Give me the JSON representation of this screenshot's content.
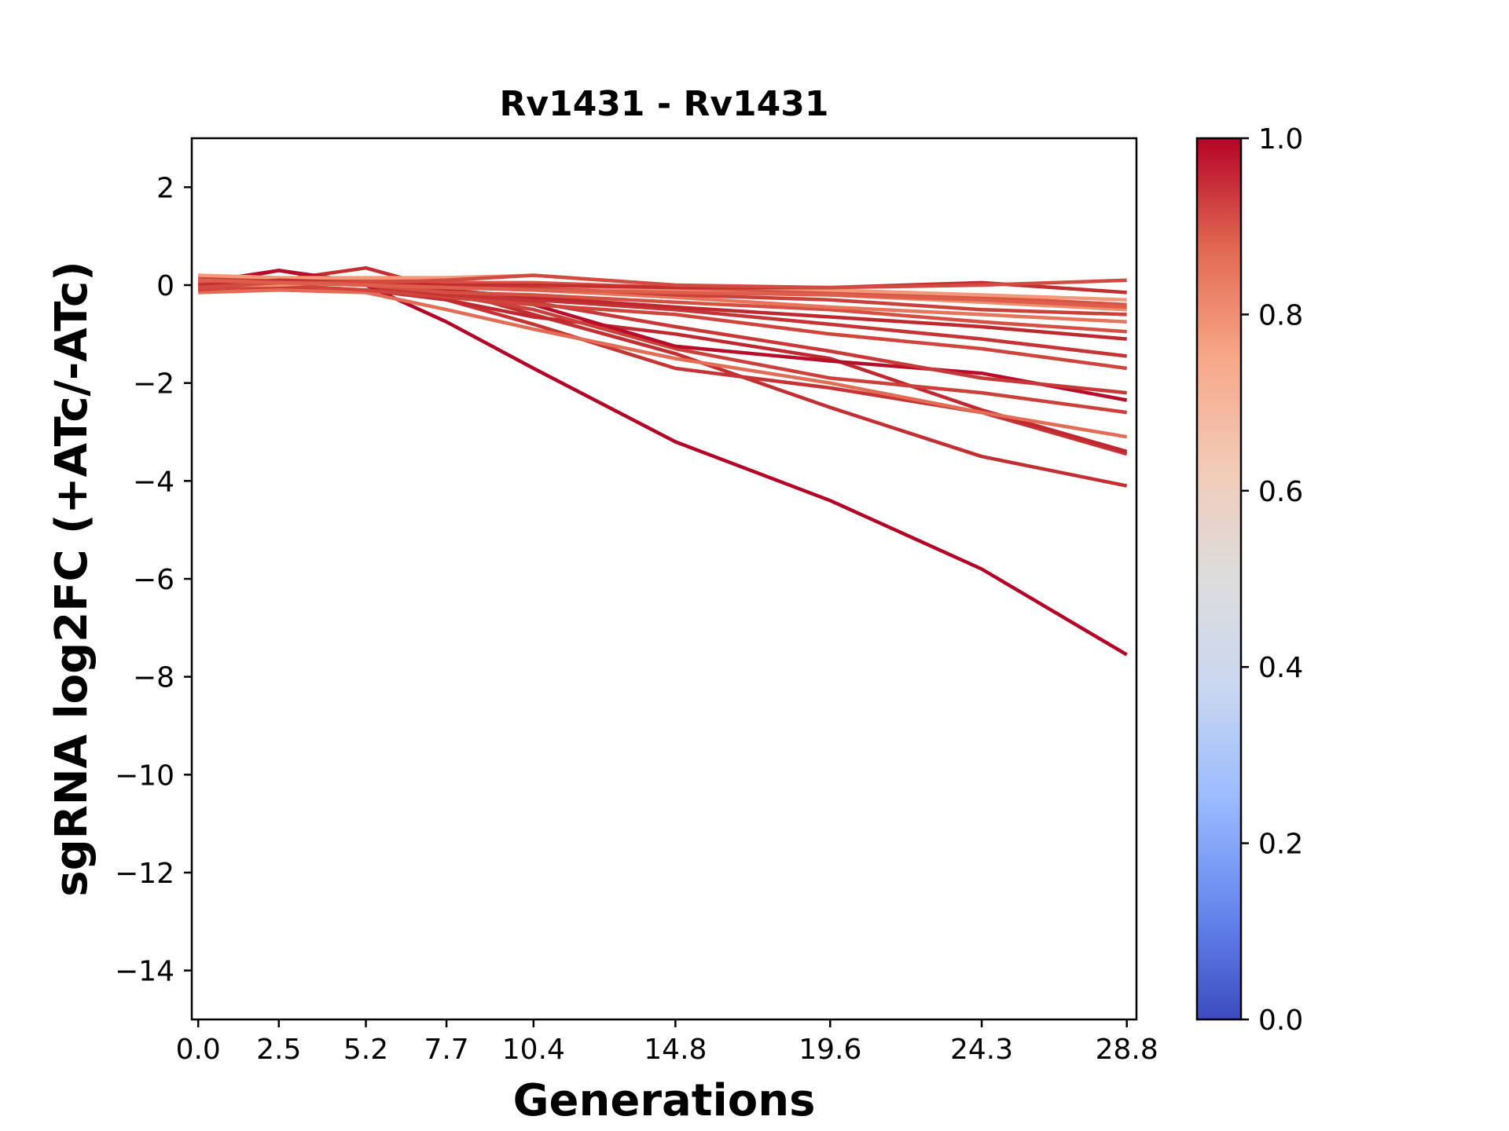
{
  "chart_data": {
    "type": "line",
    "title": "Rv1431 - Rv1431",
    "xlabel": "Generations",
    "ylabel": "sgRNA log2FC (+ATc/-ATc)",
    "x": [
      0.0,
      2.5,
      5.2,
      7.7,
      10.4,
      14.8,
      19.6,
      24.3,
      28.8
    ],
    "x_tick_labels": [
      "0.0",
      "2.5",
      "5.2",
      "7.7",
      "10.4",
      "14.8",
      "19.6",
      "24.3",
      "28.8"
    ],
    "xlim": [
      -0.2,
      29.1
    ],
    "ylim": [
      -15,
      3
    ],
    "y_ticks": [
      2,
      0,
      -2,
      -4,
      -6,
      -8,
      -10,
      -12,
      -14
    ],
    "y_tick_labels": [
      "2",
      "0",
      "−2",
      "−4",
      "−6",
      "−8",
      "−10",
      "−12",
      "−14"
    ],
    "grid": false,
    "colorbar": {
      "colormap": "coolwarm",
      "range": [
        0.0,
        1.0
      ],
      "ticks": [
        0.0,
        0.2,
        0.4,
        0.6,
        0.8,
        1.0
      ],
      "tick_labels": [
        "0.0",
        "0.2",
        "0.4",
        "0.6",
        "0.8",
        "1.0"
      ],
      "stops": [
        "#3b4cc0",
        "#6788ee",
        "#9abbff",
        "#c9d7f0",
        "#dddddd",
        "#f2cbb7",
        "#f7a889",
        "#e26952",
        "#b40426"
      ]
    },
    "series": [
      {
        "values": [
          0.0,
          0.3,
          0.0,
          -0.75,
          -1.7,
          -3.2,
          -4.4,
          -5.8,
          -7.55
        ],
        "color": "#b40426"
      },
      {
        "values": [
          0.0,
          0.1,
          0.35,
          -0.1,
          -0.6,
          -1.4,
          -2.5,
          -3.5,
          -4.1
        ],
        "color": "#c32e31"
      },
      {
        "values": [
          -0.1,
          -0.05,
          -0.1,
          -0.3,
          -0.8,
          -1.7,
          -2.1,
          -2.6,
          -3.45
        ],
        "color": "#c53334"
      },
      {
        "values": [
          0.0,
          0.1,
          0.0,
          -0.3,
          -0.65,
          -1.0,
          -1.5,
          -2.55,
          -3.4
        ],
        "color": "#c0282f"
      },
      {
        "values": [
          -0.15,
          -0.1,
          -0.15,
          -0.5,
          -0.9,
          -1.5,
          -2.0,
          -2.6,
          -3.1
        ],
        "color": "#e36c55"
      },
      {
        "values": [
          0.0,
          0.1,
          0.1,
          -0.2,
          -0.5,
          -1.3,
          -1.9,
          -2.2,
          -2.6
        ],
        "color": "#cc403a"
      },
      {
        "values": [
          0.05,
          0.3,
          0.05,
          -0.2,
          -0.4,
          -1.25,
          -1.55,
          -1.8,
          -2.35
        ],
        "color": "#b70d28"
      },
      {
        "values": [
          -0.05,
          0.15,
          0.05,
          -0.15,
          -0.35,
          -0.85,
          -1.35,
          -1.9,
          -2.2
        ],
        "color": "#c83837"
      },
      {
        "values": [
          -0.1,
          0.0,
          -0.1,
          -0.25,
          -0.4,
          -0.6,
          -1.0,
          -1.3,
          -1.7
        ],
        "color": "#cf453c"
      },
      {
        "values": [
          0.0,
          0.1,
          0.0,
          -0.2,
          -0.3,
          -0.5,
          -0.8,
          -1.1,
          -1.45
        ],
        "color": "#c53334"
      },
      {
        "values": [
          0.1,
          0.15,
          0.05,
          -0.1,
          -0.25,
          -0.45,
          -0.65,
          -0.85,
          -1.1
        ],
        "color": "#c0282f"
      },
      {
        "values": [
          -0.05,
          0.05,
          0.0,
          -0.15,
          -0.2,
          -0.35,
          -0.5,
          -0.75,
          -0.95
        ],
        "color": "#d55042"
      },
      {
        "values": [
          0.1,
          0.1,
          0.05,
          -0.05,
          -0.1,
          -0.25,
          -0.45,
          -0.6,
          -0.75
        ],
        "color": "#e7745b"
      },
      {
        "values": [
          0.15,
          0.1,
          0.15,
          0.0,
          -0.05,
          -0.2,
          -0.3,
          -0.5,
          -0.6
        ],
        "color": "#cc403a"
      },
      {
        "values": [
          0.0,
          0.0,
          0.1,
          0.0,
          0.0,
          -0.1,
          -0.2,
          -0.35,
          -0.5
        ],
        "color": "#f08b6e"
      },
      {
        "values": [
          0.05,
          0.05,
          0.1,
          0.05,
          0.05,
          -0.05,
          -0.15,
          -0.25,
          -0.4
        ],
        "color": "#d75445"
      },
      {
        "values": [
          0.2,
          0.15,
          0.15,
          0.15,
          0.2,
          0.0,
          -0.1,
          -0.2,
          -0.3
        ],
        "color": "#f4987a"
      },
      {
        "values": [
          0.0,
          0.1,
          0.05,
          0.0,
          0.0,
          -0.05,
          -0.05,
          0.05,
          -0.15
        ],
        "color": "#c32e31"
      },
      {
        "values": [
          -0.05,
          0.05,
          0.05,
          0.1,
          0.2,
          0.0,
          -0.05,
          0.0,
          0.1
        ],
        "color": "#d24b40"
      },
      {
        "values": [
          0.1,
          0.05,
          0.0,
          -0.05,
          -0.1,
          -0.15,
          -0.2,
          -0.3,
          -0.45
        ],
        "color": "#dd5f4b"
      }
    ]
  }
}
